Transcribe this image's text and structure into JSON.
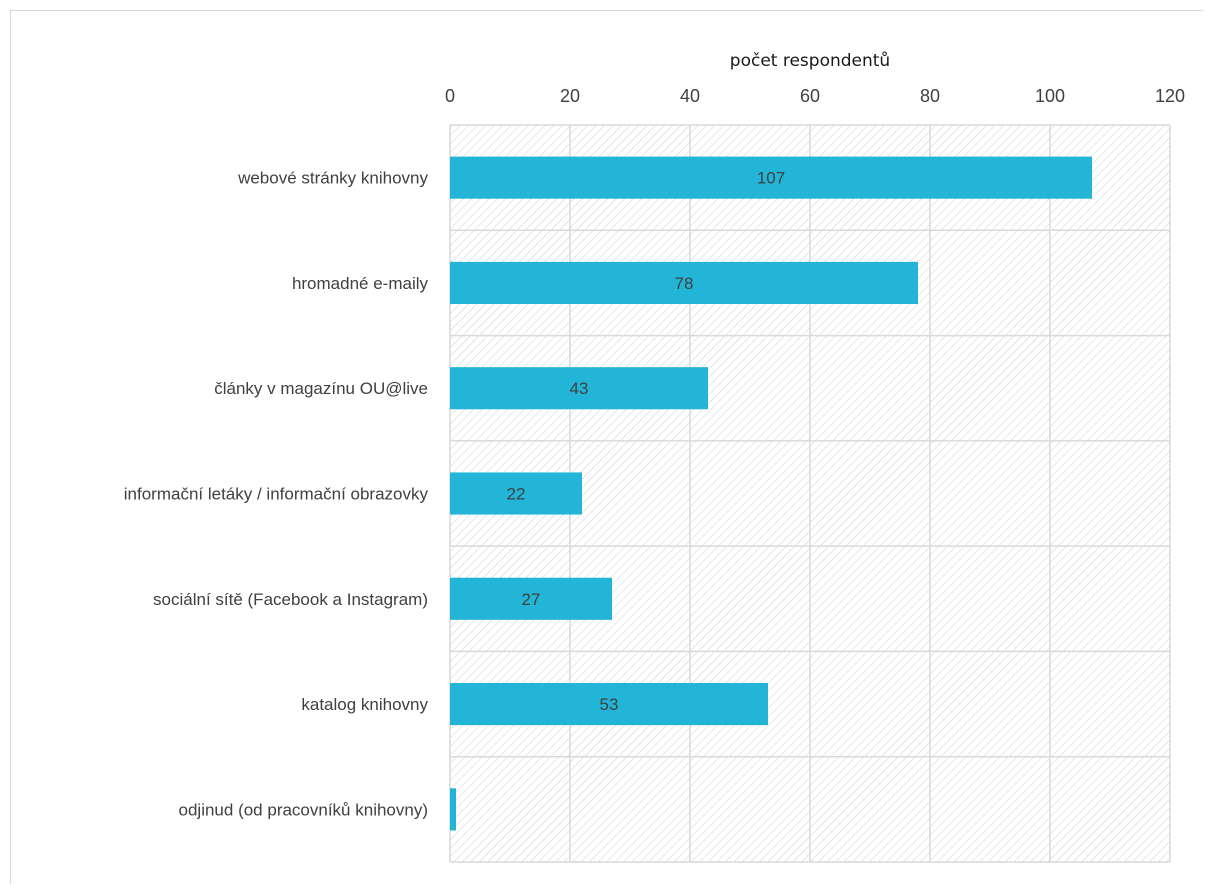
{
  "chart_data": {
    "type": "bar",
    "orientation": "horizontal",
    "x_axis_position": "top",
    "xlabel": "počet respondentů",
    "ylabel": "",
    "xlim": [
      0,
      120
    ],
    "x_ticks": [
      0,
      20,
      40,
      60,
      80,
      100,
      120
    ],
    "grid": true,
    "plot_background": "diagonal-hatch",
    "bar_color": "#22b5d7",
    "categories": [
      "webové stránky knihovny",
      "hromadné e-maily",
      "články v magazínu OU@live",
      "informační letáky / informační obrazovky",
      "sociální sítě (Facebook a Instagram)",
      "katalog knihovny",
      "odjinud (od pracovníků knihovny)"
    ],
    "values": [
      107,
      78,
      43,
      22,
      27,
      53,
      1
    ],
    "data_labels": [
      "107",
      "78",
      "43",
      "22",
      "27",
      "53",
      ""
    ]
  }
}
